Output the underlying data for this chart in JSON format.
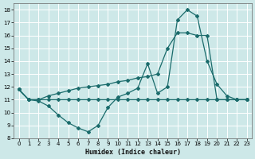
{
  "title": "",
  "xlabel": "Humidex (Indice chaleur)",
  "bg_color": "#cde8e8",
  "line_color": "#1a6b6b",
  "grid_color": "#b8d8d8",
  "ylim": [
    8,
    18.5
  ],
  "xlim": [
    -0.5,
    23.5
  ],
  "yticks": [
    8,
    9,
    10,
    11,
    12,
    13,
    14,
    15,
    16,
    17,
    18
  ],
  "xticks": [
    0,
    1,
    2,
    3,
    4,
    5,
    6,
    7,
    8,
    9,
    10,
    11,
    12,
    13,
    14,
    15,
    16,
    17,
    18,
    19,
    20,
    21,
    22,
    23
  ],
  "series1_x": [
    0,
    1,
    2,
    3,
    4,
    5,
    6,
    7,
    8,
    9,
    10,
    11,
    12,
    13,
    14,
    15,
    16,
    17,
    18,
    19,
    20,
    21,
    22,
    23
  ],
  "series1_y": [
    11.8,
    11.0,
    10.9,
    10.5,
    9.8,
    9.2,
    8.8,
    8.5,
    9.0,
    10.4,
    11.2,
    11.5,
    11.9,
    13.8,
    11.5,
    12.0,
    17.2,
    18.0,
    17.5,
    14.0,
    12.2,
    11.3,
    11.0,
    11.0
  ],
  "series2_x": [
    0,
    1,
    2,
    3,
    4,
    5,
    6,
    7,
    8,
    9,
    10,
    11,
    12,
    13,
    14,
    15,
    16,
    17,
    18,
    19,
    20,
    21,
    22,
    23
  ],
  "series2_y": [
    11.8,
    11.0,
    11.0,
    11.3,
    11.5,
    11.7,
    11.9,
    12.0,
    12.1,
    12.2,
    12.4,
    12.5,
    12.7,
    12.8,
    13.0,
    15.0,
    16.2,
    16.2,
    16.0,
    16.0,
    11.0,
    11.0,
    11.0,
    11.0
  ],
  "series3_x": [
    0,
    1,
    2,
    3,
    4,
    5,
    6,
    7,
    8,
    9,
    10,
    11,
    12,
    13,
    14,
    15,
    16,
    17,
    18,
    19,
    20,
    21,
    22,
    23
  ],
  "series3_y": [
    11.8,
    11.0,
    11.0,
    11.0,
    11.0,
    11.0,
    11.0,
    11.0,
    11.0,
    11.0,
    11.0,
    11.0,
    11.0,
    11.0,
    11.0,
    11.0,
    11.0,
    11.0,
    11.0,
    11.0,
    11.0,
    11.0,
    11.0,
    11.0
  ]
}
